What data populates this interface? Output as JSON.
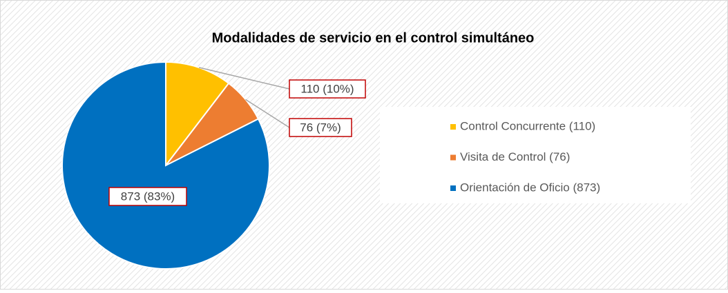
{
  "chart_data": {
    "type": "pie",
    "title": "Modalidades de servicio en el control simultáneo",
    "categories": [
      "Control Concurrente (110)",
      "Visita de Control (76)",
      "Orientación de Oficio (873)"
    ],
    "values": [
      110,
      76,
      873
    ],
    "value_labels": [
      "110 (10%)",
      "76 (7%)",
      "873 (83%)"
    ],
    "colors": [
      "#ffc000",
      "#ed7d31",
      "#0070c0"
    ],
    "legend": "right"
  }
}
